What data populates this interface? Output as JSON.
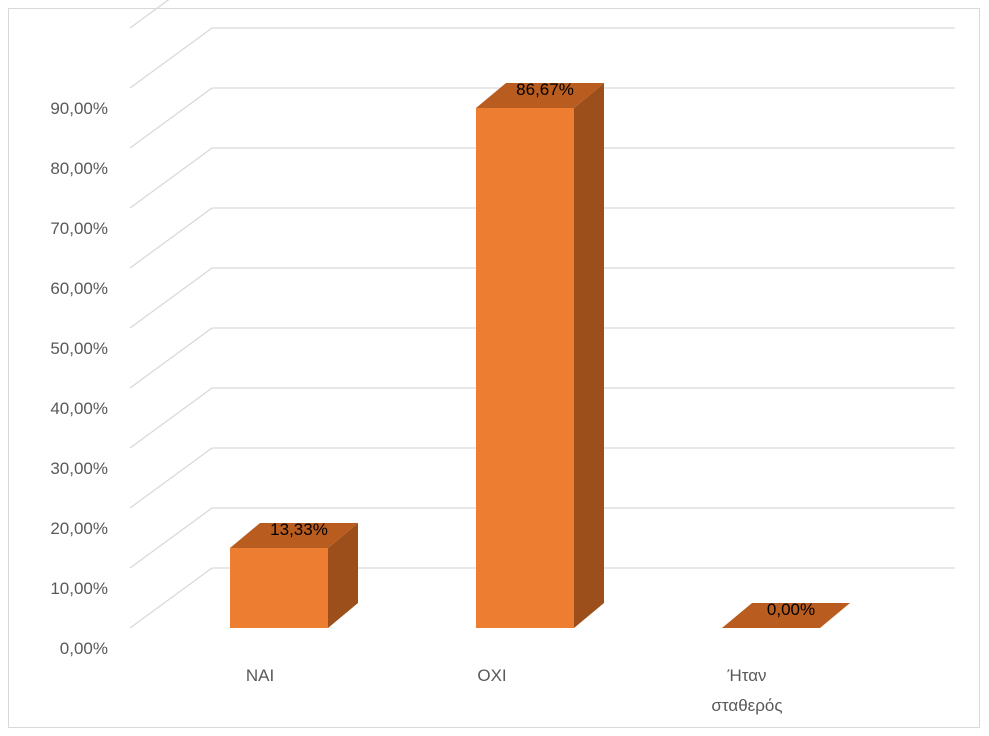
{
  "chart_data": {
    "type": "bar",
    "style": "3d-column",
    "categories": [
      "NAI",
      "OXI",
      "Ήταν σταθερός"
    ],
    "category_lines": [
      [
        "NAI"
      ],
      [
        "OXI"
      ],
      [
        "Ήταν",
        "σταθερός"
      ]
    ],
    "values": [
      13.33,
      86.67,
      0.0
    ],
    "data_labels": [
      "13,33%",
      "86,67%",
      "0,00%"
    ],
    "ylim": [
      0,
      90
    ],
    "y_ticks": [
      0,
      10,
      20,
      30,
      40,
      50,
      60,
      70,
      80,
      90
    ],
    "y_tick_labels": [
      "0,00%",
      "10,00%",
      "20,00%",
      "30,00%",
      "40,00%",
      "50,00%",
      "60,00%",
      "70,00%",
      "80,00%",
      "90,00%"
    ],
    "grid": true,
    "legend": "none",
    "colors": {
      "bar_front": "#ed7d31",
      "bar_side": "#9c4f1b",
      "bar_top": "#b85c20",
      "grid": "#d9d9d9"
    }
  }
}
